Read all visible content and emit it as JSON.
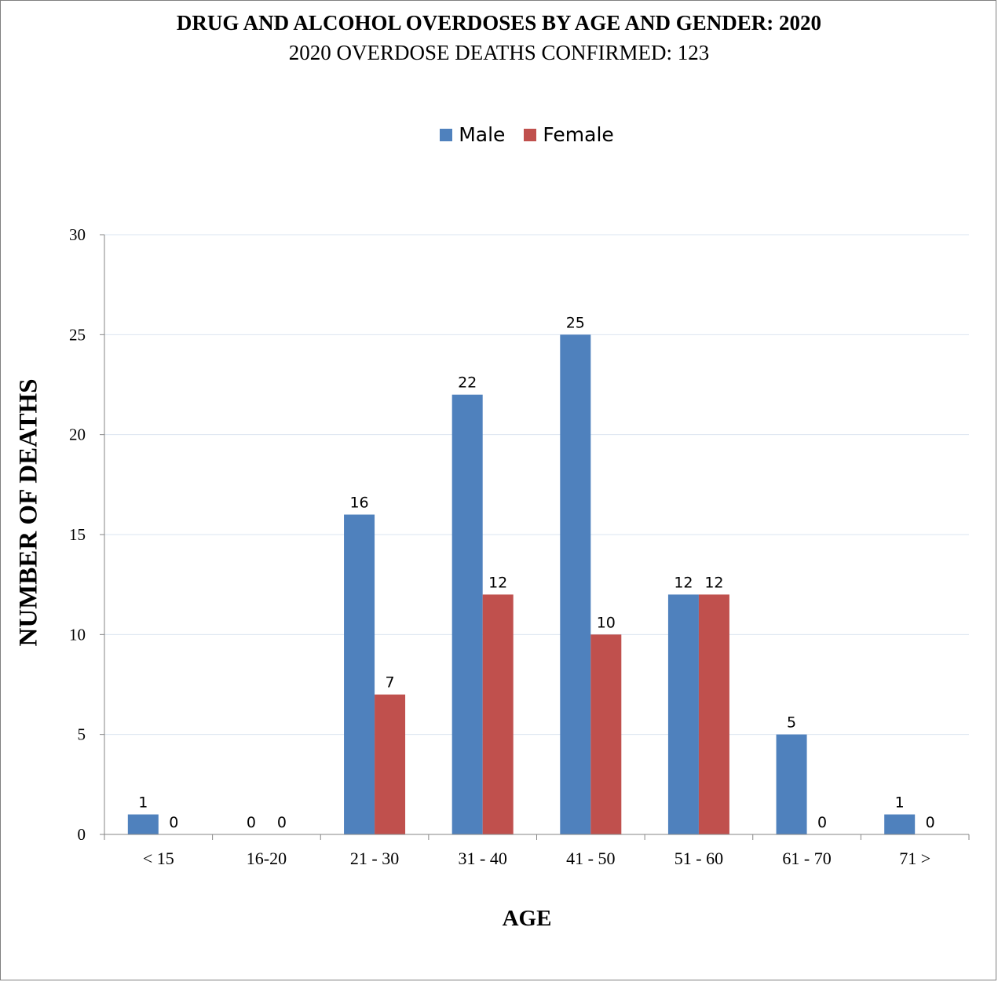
{
  "chart_data": {
    "type": "bar",
    "title": "DRUG AND ALCOHOL OVERDOSES BY AGE AND GENDER: 2020",
    "subtitle": "2020 OVERDOSE DEATHS CONFIRMED: 123",
    "xlabel": "AGE",
    "ylabel": "NUMBER OF DEATHS",
    "categories": [
      "< 15",
      "16-20",
      "21 - 30",
      "31 - 40",
      "41 - 50",
      "51 - 60",
      "61 - 70",
      "71 >"
    ],
    "series": [
      {
        "name": "Male",
        "color": "#4f81bd",
        "values": [
          1,
          0,
          16,
          22,
          25,
          12,
          5,
          1
        ]
      },
      {
        "name": "Female",
        "color": "#c0504d",
        "values": [
          0,
          0,
          7,
          12,
          10,
          12,
          0,
          0
        ]
      }
    ],
    "ylim": [
      0,
      30
    ],
    "yticks": [
      0,
      5,
      10,
      15,
      20,
      25,
      30
    ],
    "grid": true,
    "legend_position": "top"
  }
}
